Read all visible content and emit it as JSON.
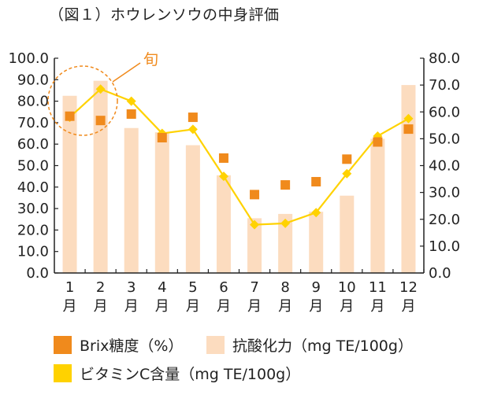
{
  "title": "（図１）ホウレンソウの中身評価",
  "annotation": "旬",
  "legend": {
    "brix": "Brix糖度（%）",
    "antioxidant": "抗酸化力（mg TE/100g）",
    "vitc": "ビタミンC含量（mg TE/100g）"
  },
  "colors": {
    "brix": "#f08a1c",
    "antioxidant": "#fcdcbf",
    "vitc": "#ffd200",
    "annotation": "#f08a1c"
  },
  "chart_data": {
    "type": "bar",
    "categories": [
      "1",
      "2",
      "3",
      "4",
      "5",
      "6",
      "7",
      "8",
      "9",
      "10",
      "11",
      "12"
    ],
    "category_suffix": "月",
    "left_axis": {
      "ylim": [
        0,
        100
      ],
      "ticks": [
        "0.0",
        "10.0",
        "20.0",
        "30.0",
        "40.0",
        "50.0",
        "60.0",
        "70.0",
        "80.0",
        "90.0",
        "100.0"
      ]
    },
    "right_axis": {
      "ylim": [
        0,
        80
      ],
      "ticks": [
        "0.0",
        "10.0",
        "20.0",
        "30.0",
        "40.0",
        "50.0",
        "60.0",
        "70.0",
        "80.0"
      ]
    },
    "series": [
      {
        "name": "抗酸化力（mg TE/100g）",
        "type": "bar",
        "axis": "left",
        "values": [
          82.5,
          89.5,
          67.5,
          65.5,
          59.5,
          45.5,
          25.5,
          27.5,
          28.5,
          36,
          62.5,
          87.5
        ]
      },
      {
        "name": "Brix糖度（%）",
        "type": "scatter",
        "axis": "left",
        "values": [
          73,
          71,
          74,
          63,
          72.5,
          53.5,
          36.5,
          41,
          42.5,
          53,
          61,
          67
        ]
      },
      {
        "name": "ビタミンC含量（mg TE/100g）",
        "type": "line",
        "axis": "right",
        "values": [
          58,
          68.5,
          64,
          52,
          53.5,
          36,
          18,
          18.5,
          22.5,
          37,
          51,
          57.5
        ]
      }
    ],
    "grid": false,
    "legend_position": "bottom"
  }
}
